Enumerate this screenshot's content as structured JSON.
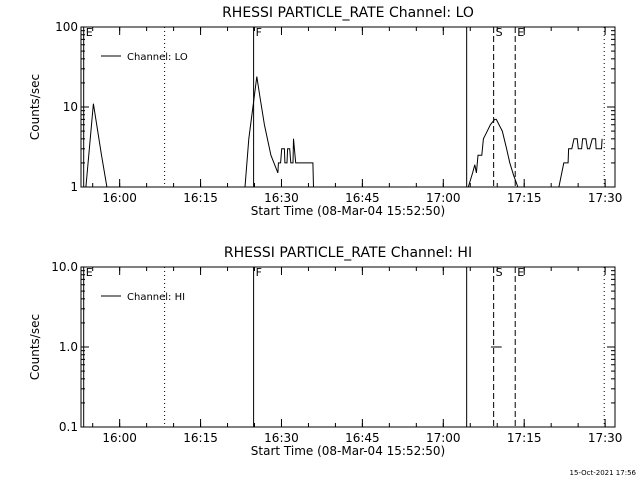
{
  "chart_data": [
    {
      "type": "line",
      "title": "RHESSI PARTICLE_RATE Channel: LO",
      "xlabel": "Start Time (08-Mar-04 15:52:50)",
      "ylabel": "Counts/sec",
      "yscale": "log",
      "ylim": [
        1,
        100
      ],
      "yticks": [
        "1",
        "10",
        "100"
      ],
      "xlim_minutes": [
        0,
        99
      ],
      "xticks": [
        "16:00",
        "16:15",
        "16:30",
        "16:45",
        "17:00",
        "17:15",
        "17:30"
      ],
      "legend": {
        "label": "Channel: LO",
        "placement": "top-left"
      },
      "markers": [
        {
          "t": 0.5,
          "style": "solid",
          "label": "E"
        },
        {
          "t": 15.5,
          "style": "dotted",
          "label": ""
        },
        {
          "t": 32.0,
          "style": "solid",
          "label": "F"
        },
        {
          "t": 71.5,
          "style": "solid",
          "label": ""
        },
        {
          "t": 76.5,
          "style": "dashed",
          "label": "S"
        },
        {
          "t": 80.5,
          "style": "dashed",
          "label": "E"
        },
        {
          "t": 97.0,
          "style": "dotted",
          "label": ""
        }
      ],
      "series": [
        {
          "x": [
            0.9,
            2.3,
            3.8,
            4.8,
            30.4,
            31.1,
            32.1,
            32.6,
            33.2,
            34.0,
            35.2,
            36.5,
            36.6,
            37.0,
            37.2,
            37.7,
            37.8,
            38.2,
            38.3,
            38.7,
            38.9,
            39.3,
            39.4,
            39.8,
            43.0,
            43.1,
            71.8,
            72.6,
            73.0,
            73.3,
            73.6,
            74.3,
            74.6,
            75.0,
            75.9,
            76.7,
            77.0,
            78.1,
            78.9,
            79.5,
            80.2,
            81.0,
            81.2,
            88.6,
            89.5,
            90.3,
            90.4,
            91.0,
            91.4,
            92.0,
            92.2,
            92.8,
            93.0,
            93.6,
            93.9,
            94.3,
            94.8,
            95.4,
            95.5,
            96.5,
            96.6
          ],
          "y": [
            1,
            11,
            2.5,
            1,
            1,
            4,
            13,
            24,
            13,
            6,
            2.5,
            1.5,
            2,
            2,
            3,
            3,
            2,
            2,
            3,
            3,
            2,
            2,
            4,
            2,
            2,
            1,
            1,
            1.5,
            1.9,
            1.5,
            2.5,
            2.5,
            4,
            4.5,
            6,
            7,
            7,
            5,
            3,
            2,
            1.4,
            1,
            1,
            1,
            2,
            2,
            3,
            3,
            4,
            4,
            3,
            3,
            4,
            4,
            3,
            3,
            4,
            4,
            3,
            3,
            4
          ]
        }
      ]
    },
    {
      "type": "line",
      "title": "RHESSI PARTICLE_RATE Channel: HI",
      "xlabel": "Start Time (08-Mar-04 15:52:50)",
      "ylabel": "Counts/sec",
      "yscale": "log",
      "ylim": [
        0.1,
        10
      ],
      "yticks": [
        "0.1",
        "1.0",
        "10.0"
      ],
      "xlim_minutes": [
        0,
        99
      ],
      "xticks": [
        "16:00",
        "16:15",
        "16:30",
        "16:45",
        "17:00",
        "17:15",
        "17:30"
      ],
      "legend": {
        "label": "Channel: HI",
        "placement": "top-left"
      },
      "markers": [
        {
          "t": 0.5,
          "style": "solid",
          "label": "E"
        },
        {
          "t": 15.5,
          "style": "dotted",
          "label": ""
        },
        {
          "t": 32.0,
          "style": "solid",
          "label": "F"
        },
        {
          "t": 71.5,
          "style": "solid",
          "label": ""
        },
        {
          "t": 76.5,
          "style": "dashed",
          "label": "S"
        },
        {
          "t": 80.5,
          "style": "dashed",
          "label": "E"
        },
        {
          "t": 97.0,
          "style": "dotted",
          "label": ""
        }
      ],
      "series": [
        {
          "x": [
            76.0,
            78.0
          ],
          "y": [
            1,
            1
          ]
        }
      ]
    }
  ],
  "footer": {
    "stamp": "15-Oct-2021 17:56"
  }
}
